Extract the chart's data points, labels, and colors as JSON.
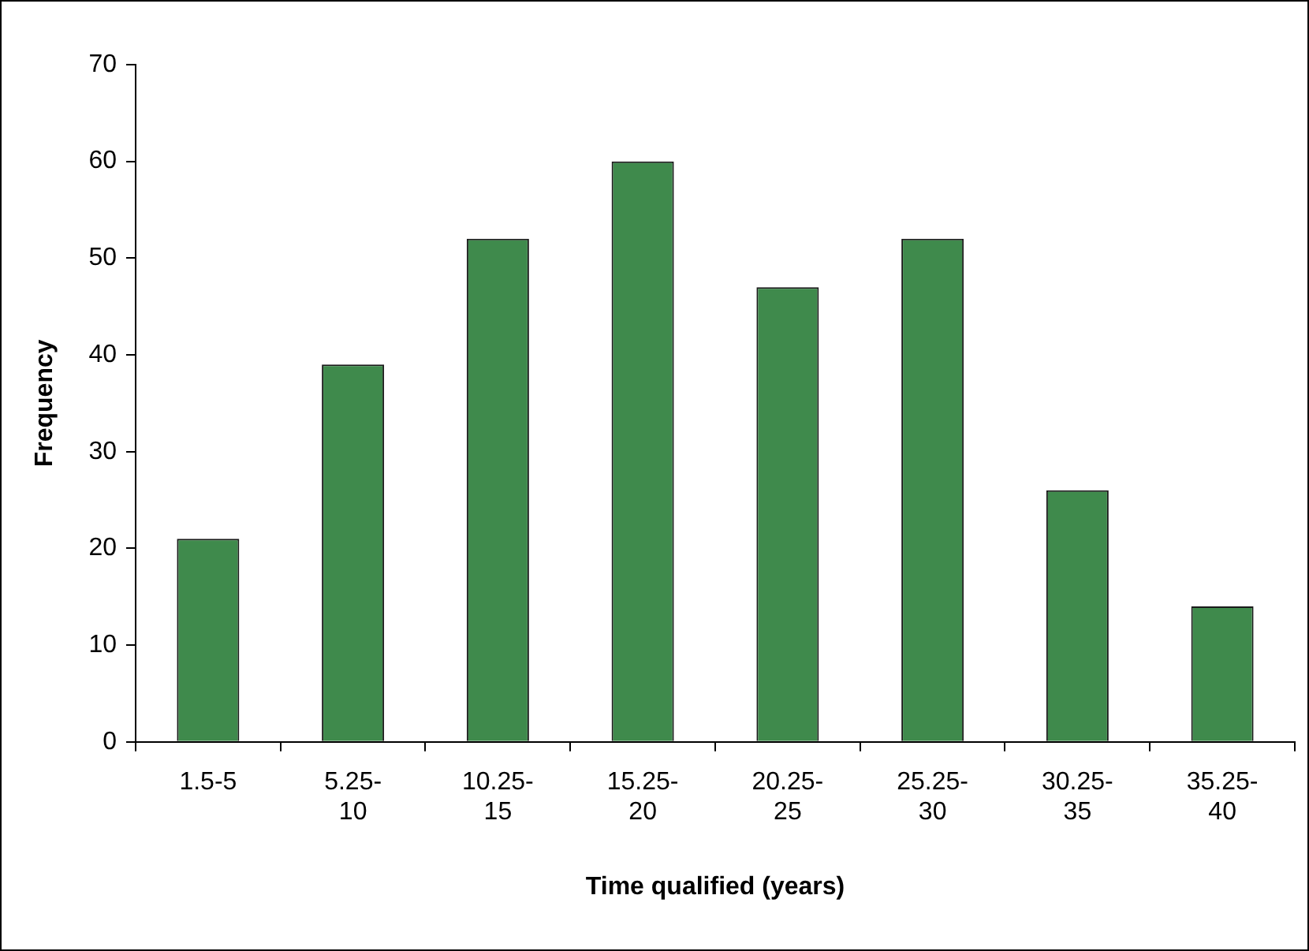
{
  "chart_data": {
    "type": "bar",
    "xlabel": "Time qualified (years)",
    "ylabel": "Frequency",
    "categories": [
      "1.5-5",
      "5.25-10",
      "10.25-15",
      "15.25-20",
      "20.25-25",
      "25.25-30",
      "30.25-35",
      "35.25-40"
    ],
    "values": [
      21,
      39,
      52,
      60,
      47,
      52,
      26,
      14
    ],
    "color": "#3f8a4c",
    "ylim": [
      0,
      70
    ],
    "yticks": [
      0,
      10,
      20,
      30,
      40,
      50,
      60,
      70
    ],
    "grid": false,
    "legend": false
  }
}
